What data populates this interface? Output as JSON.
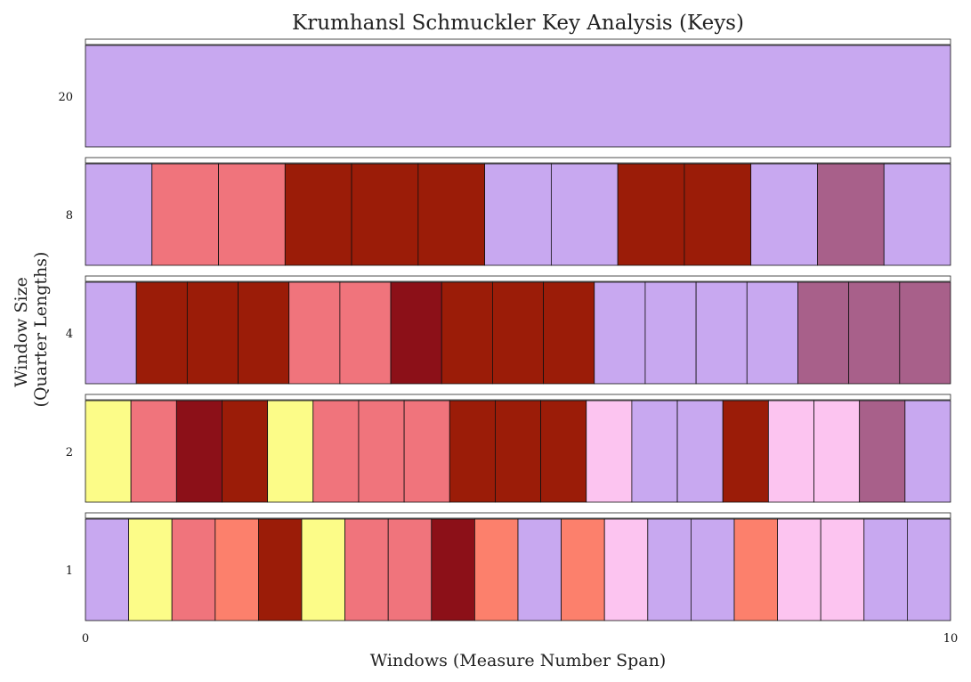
{
  "chart_data": {
    "type": "heatmap",
    "title": "Krumhansl Schmuckler Key Analysis (Keys)",
    "xlabel": "Windows (Measure Number Span)",
    "ylabel_lines": [
      "Window Size",
      "(Quarter Lengths)"
    ],
    "x_ticks": [
      "0",
      "10"
    ],
    "xlim": [
      0,
      10
    ],
    "grid": false,
    "legend": "none",
    "palette": {
      "lavender": "#c8a8f0",
      "salmon": "#f0747c",
      "rust": "#9b1c08",
      "maroon": "#8c1018",
      "mauve": "#a8608a",
      "yellow": "#fcfc88",
      "pink": "#fcc4f0",
      "coral": "#fc806c"
    },
    "rows": [
      {
        "window_size": "20",
        "cells": [
          "lavender"
        ]
      },
      {
        "window_size": "8",
        "cells": [
          "lavender",
          "salmon",
          "salmon",
          "rust",
          "rust",
          "rust",
          "lavender",
          "lavender",
          "rust",
          "rust",
          "lavender",
          "mauve",
          "lavender"
        ]
      },
      {
        "window_size": "4",
        "cells": [
          "lavender",
          "rust",
          "rust",
          "rust",
          "salmon",
          "salmon",
          "maroon",
          "rust",
          "rust",
          "rust",
          "lavender",
          "lavender",
          "lavender",
          "lavender",
          "mauve",
          "mauve",
          "mauve"
        ]
      },
      {
        "window_size": "2",
        "cells": [
          "yellow",
          "salmon",
          "maroon",
          "rust",
          "yellow",
          "salmon",
          "salmon",
          "salmon",
          "rust",
          "rust",
          "rust",
          "pink",
          "lavender",
          "lavender",
          "rust",
          "pink",
          "pink",
          "mauve",
          "lavender"
        ]
      },
      {
        "window_size": "1",
        "cells": [
          "lavender",
          "yellow",
          "salmon",
          "coral",
          "rust",
          "yellow",
          "salmon",
          "salmon",
          "maroon",
          "coral",
          "lavender",
          "coral",
          "pink",
          "lavender",
          "lavender",
          "coral",
          "pink",
          "pink",
          "lavender",
          "lavender"
        ]
      }
    ]
  }
}
